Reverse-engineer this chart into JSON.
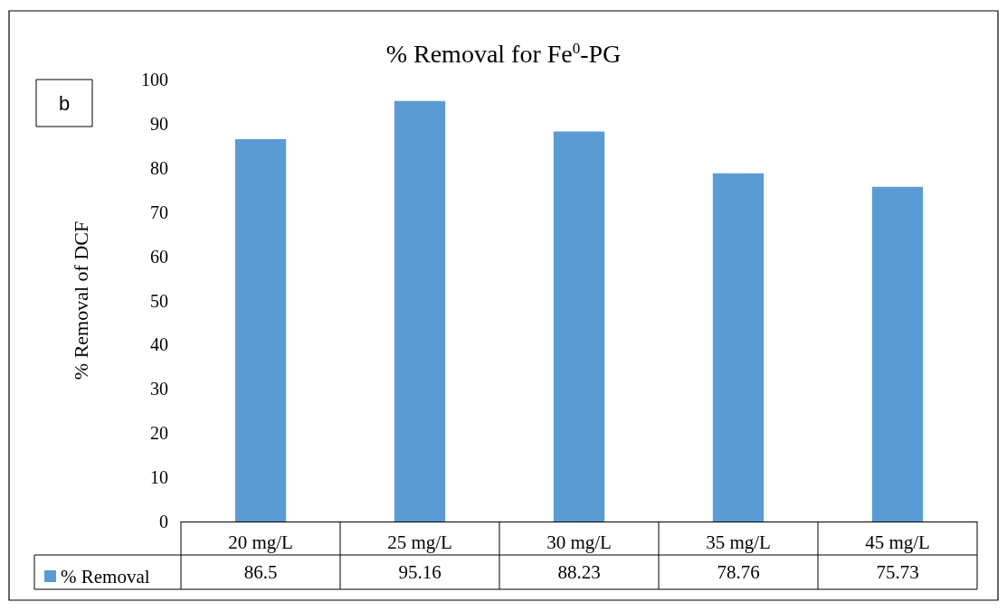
{
  "chart_data": {
    "type": "bar",
    "title": "% Removal for Fe$^{0}$-PG",
    "ylabel": "% Removal of DCF",
    "annotations": [
      "b"
    ],
    "categories": [
      "20 mg/L",
      "25 mg/L",
      "30 mg/L",
      "35 mg/L",
      "45 mg/L"
    ],
    "series": [
      {
        "name": "% Removal",
        "color": "#5b9bd5",
        "values": [
          86.5,
          95.16,
          88.23,
          78.76,
          75.73
        ]
      }
    ],
    "ylim": [
      0,
      100
    ],
    "yticks": [
      0,
      10,
      20,
      30,
      40,
      50,
      60,
      70,
      80,
      90,
      100
    ],
    "data_labels": true,
    "legend": "bottom left"
  }
}
